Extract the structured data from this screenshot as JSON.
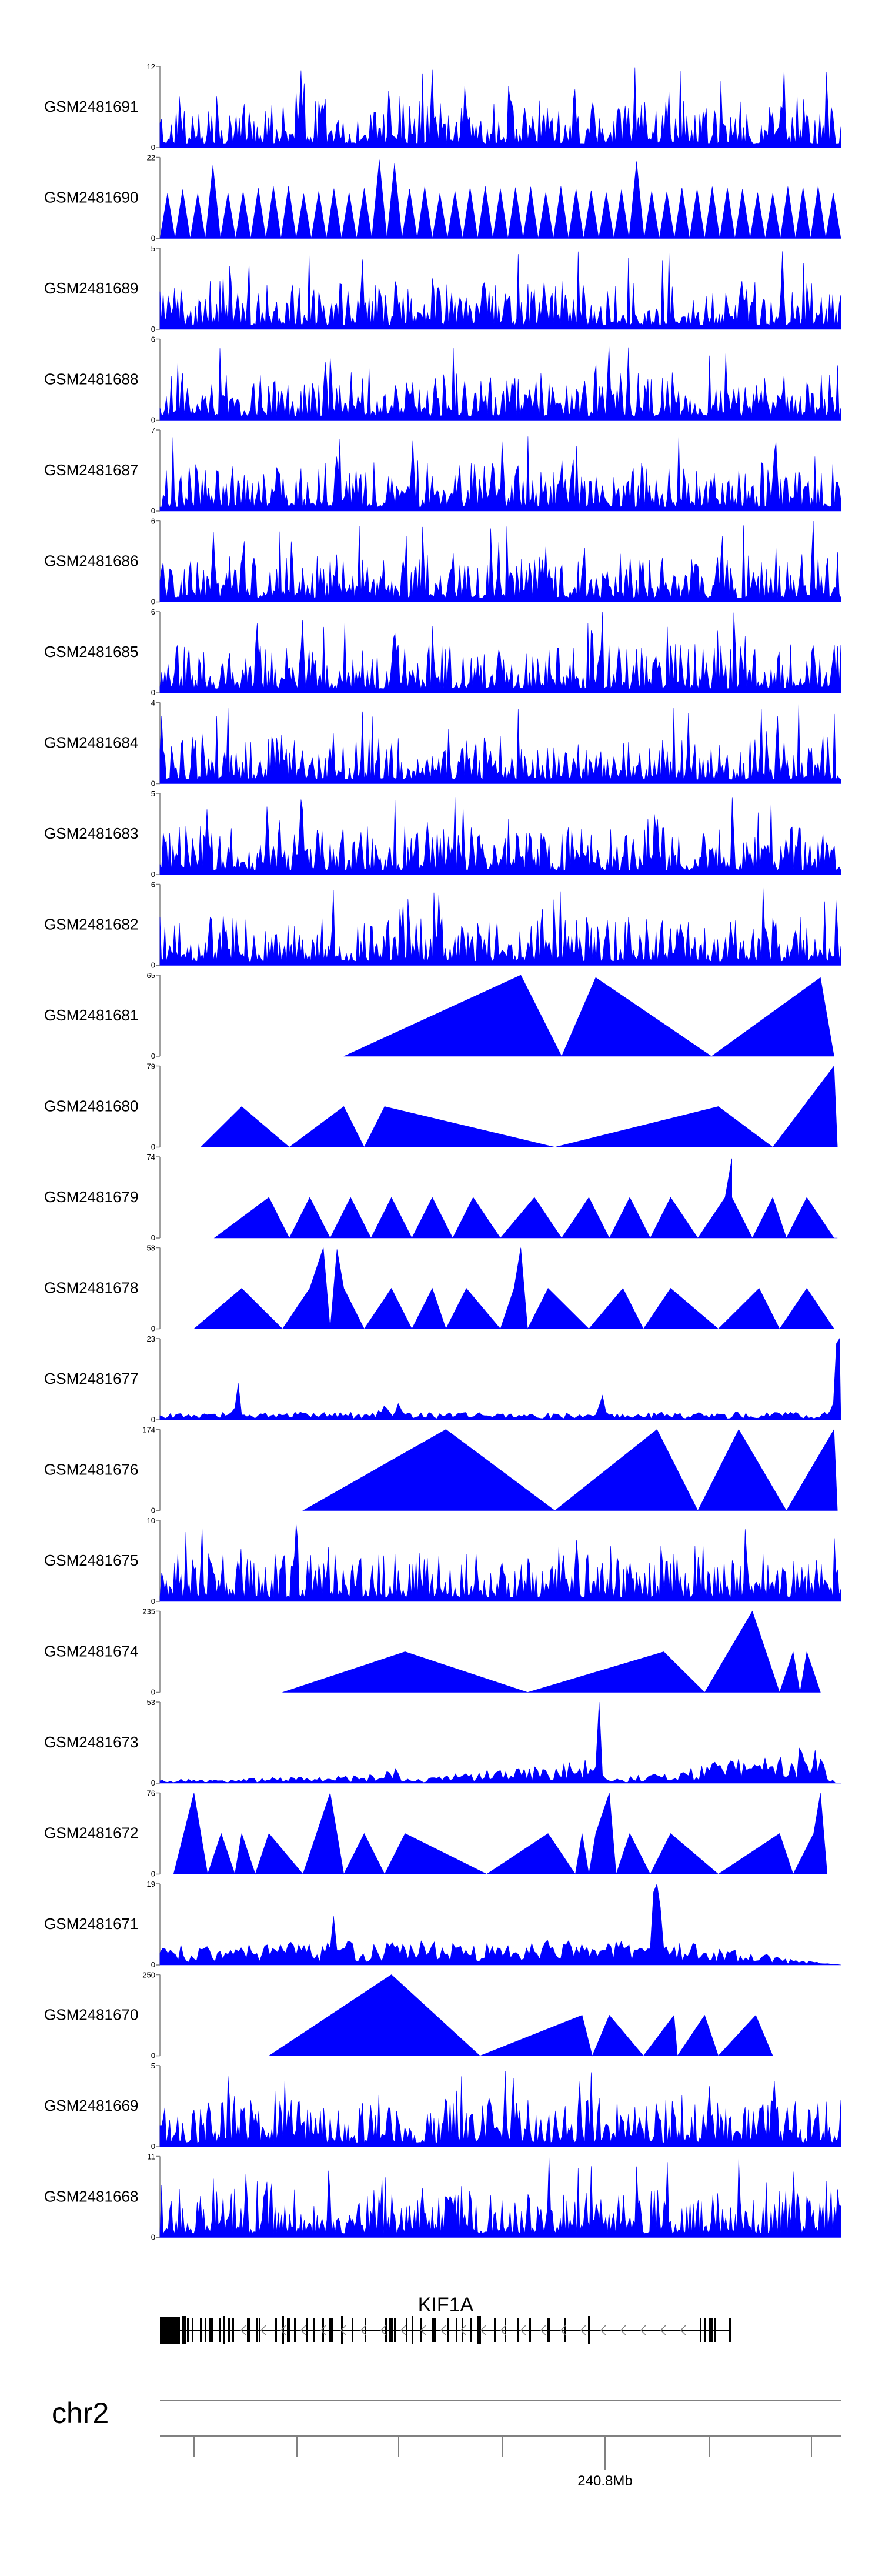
{
  "chart_data": {
    "type": "area",
    "title": "",
    "color": "#0000ff",
    "x_range": [
      0,
      1
    ],
    "series": [
      {
        "name": "GSM2481691",
        "ymax": 12,
        "ymin": 0,
        "style": "dense"
      },
      {
        "name": "GSM2481690",
        "ymax": 22,
        "ymin": 0,
        "style": "triangles-dense"
      },
      {
        "name": "GSM2481689",
        "ymax": 5,
        "ymin": 0,
        "style": "dense"
      },
      {
        "name": "GSM2481688",
        "ymax": 6,
        "ymin": 0,
        "style": "dense"
      },
      {
        "name": "GSM2481687",
        "ymax": 7,
        "ymin": 0,
        "style": "dense"
      },
      {
        "name": "GSM2481686",
        "ymax": 6,
        "ymin": 0,
        "style": "dense"
      },
      {
        "name": "GSM2481685",
        "ymax": 6,
        "ymin": 0,
        "style": "dense"
      },
      {
        "name": "GSM2481684",
        "ymax": 4,
        "ymin": 0,
        "style": "dense"
      },
      {
        "name": "GSM2481683",
        "ymax": 5,
        "ymin": 0,
        "style": "dense"
      },
      {
        "name": "GSM2481682",
        "ymax": 6,
        "ymin": 0,
        "style": "dense"
      },
      {
        "name": "GSM2481681",
        "ymax": 65,
        "ymin": 0,
        "style": "sparse",
        "points": [
          [
            0.27,
            0
          ],
          [
            0.53,
            1.0
          ],
          [
            0.59,
            0
          ],
          [
            0.64,
            0.97
          ],
          [
            0.81,
            0
          ],
          [
            0.97,
            0.97
          ],
          [
            0.99,
            0
          ]
        ]
      },
      {
        "name": "GSM2481680",
        "ymax": 79,
        "ymin": 0,
        "style": "sparse",
        "points": [
          [
            0.06,
            0
          ],
          [
            0.12,
            0.5
          ],
          [
            0.19,
            0
          ],
          [
            0.27,
            0.5
          ],
          [
            0.3,
            0
          ],
          [
            0.33,
            0.5
          ],
          [
            0.58,
            0
          ],
          [
            0.82,
            0.5
          ],
          [
            0.9,
            0
          ],
          [
            0.99,
            1.0
          ],
          [
            0.995,
            0
          ]
        ]
      },
      {
        "name": "GSM2481679",
        "ymax": 74,
        "ymin": 0,
        "style": "sparse",
        "points": [
          [
            0.08,
            0
          ],
          [
            0.16,
            0.5
          ],
          [
            0.19,
            0
          ],
          [
            0.22,
            0.5
          ],
          [
            0.25,
            0
          ],
          [
            0.28,
            0.5
          ],
          [
            0.31,
            0
          ],
          [
            0.34,
            0.5
          ],
          [
            0.37,
            0
          ],
          [
            0.4,
            0.5
          ],
          [
            0.43,
            0
          ],
          [
            0.46,
            0.5
          ],
          [
            0.5,
            0
          ],
          [
            0.55,
            0.5
          ],
          [
            0.59,
            0
          ],
          [
            0.63,
            0.5
          ],
          [
            0.66,
            0
          ],
          [
            0.69,
            0.5
          ],
          [
            0.72,
            0
          ],
          [
            0.75,
            0.5
          ],
          [
            0.79,
            0
          ],
          [
            0.83,
            0.5
          ],
          [
            0.84,
            0.98
          ],
          [
            0.84,
            0.5
          ],
          [
            0.87,
            0
          ],
          [
            0.9,
            0.5
          ],
          [
            0.92,
            0
          ],
          [
            0.95,
            0.5
          ],
          [
            0.99,
            0
          ],
          [
            0.995,
            0
          ]
        ]
      },
      {
        "name": "GSM2481678",
        "ymax": 58,
        "ymin": 0,
        "style": "sparse",
        "points": [
          [
            0.05,
            0
          ],
          [
            0.12,
            0.5
          ],
          [
            0.18,
            0
          ],
          [
            0.22,
            0.5
          ],
          [
            0.24,
            1.0
          ],
          [
            0.25,
            0
          ],
          [
            0.26,
            0.98
          ],
          [
            0.27,
            0.5
          ],
          [
            0.3,
            0
          ],
          [
            0.34,
            0.5
          ],
          [
            0.37,
            0
          ],
          [
            0.4,
            0.5
          ],
          [
            0.42,
            0
          ],
          [
            0.45,
            0.5
          ],
          [
            0.5,
            0
          ],
          [
            0.52,
            0.5
          ],
          [
            0.53,
            1.0
          ],
          [
            0.54,
            0
          ],
          [
            0.57,
            0.5
          ],
          [
            0.63,
            0
          ],
          [
            0.68,
            0.5
          ],
          [
            0.71,
            0
          ],
          [
            0.75,
            0.5
          ],
          [
            0.82,
            0
          ],
          [
            0.88,
            0.5
          ],
          [
            0.91,
            0
          ],
          [
            0.95,
            0.5
          ],
          [
            0.99,
            0
          ]
        ]
      },
      {
        "name": "GSM2481677",
        "ymax": 23,
        "ymin": 0,
        "style": "sparse-noise",
        "points": [
          [
            0.0,
            0.05
          ],
          [
            0.1,
            0.06
          ],
          [
            0.115,
            0.45
          ],
          [
            0.12,
            0.06
          ],
          [
            0.3,
            0.06
          ],
          [
            0.35,
            0.2
          ],
          [
            0.36,
            0.06
          ],
          [
            0.64,
            0.06
          ],
          [
            0.65,
            0.3
          ],
          [
            0.66,
            0.06
          ],
          [
            0.98,
            0.06
          ],
          [
            0.998,
            1.0
          ],
          [
            1.0,
            0
          ]
        ]
      },
      {
        "name": "GSM2481676",
        "ymax": 174,
        "ymin": 0,
        "style": "sparse",
        "points": [
          [
            0.21,
            0
          ],
          [
            0.42,
            1.0
          ],
          [
            0.58,
            0
          ],
          [
            0.73,
            1.0
          ],
          [
            0.79,
            0
          ],
          [
            0.85,
            1.0
          ],
          [
            0.92,
            0
          ],
          [
            0.99,
            1.0
          ],
          [
            0.995,
            0
          ]
        ]
      },
      {
        "name": "GSM2481675",
        "ymax": 10,
        "ymin": 0,
        "style": "dense"
      },
      {
        "name": "GSM2481674",
        "ymax": 235,
        "ymin": 0,
        "style": "sparse",
        "points": [
          [
            0.18,
            0
          ],
          [
            0.36,
            0.5
          ],
          [
            0.54,
            0
          ],
          [
            0.74,
            0.5
          ],
          [
            0.8,
            0
          ],
          [
            0.87,
            1.0
          ],
          [
            0.91,
            0
          ],
          [
            0.93,
            0.5
          ],
          [
            0.94,
            0
          ],
          [
            0.95,
            0.5
          ],
          [
            0.97,
            0
          ]
        ]
      },
      {
        "name": "GSM2481673",
        "ymax": 53,
        "ymin": 0,
        "style": "sparse-noise",
        "points": [
          [
            0.0,
            0.03
          ],
          [
            0.3,
            0.06
          ],
          [
            0.35,
            0.12
          ],
          [
            0.36,
            0.03
          ],
          [
            0.64,
            0.2
          ],
          [
            0.645,
            1.0
          ],
          [
            0.65,
            0.1
          ],
          [
            0.66,
            0.03
          ],
          [
            0.97,
            0.3
          ],
          [
            0.98,
            0.05
          ],
          [
            1.0,
            0
          ]
        ]
      },
      {
        "name": "GSM2481672",
        "ymax": 76,
        "ymin": 0,
        "style": "sparse",
        "points": [
          [
            0.02,
            0
          ],
          [
            0.05,
            1.0
          ],
          [
            0.07,
            0
          ],
          [
            0.09,
            0.5
          ],
          [
            0.11,
            0
          ],
          [
            0.12,
            0.5
          ],
          [
            0.14,
            0
          ],
          [
            0.16,
            0.5
          ],
          [
            0.21,
            0
          ],
          [
            0.25,
            1.0
          ],
          [
            0.27,
            0
          ],
          [
            0.3,
            0.5
          ],
          [
            0.33,
            0
          ],
          [
            0.36,
            0.5
          ],
          [
            0.48,
            0
          ],
          [
            0.57,
            0.5
          ],
          [
            0.61,
            0
          ],
          [
            0.62,
            0.5
          ],
          [
            0.63,
            0
          ],
          [
            0.64,
            0.5
          ],
          [
            0.66,
            1.0
          ],
          [
            0.67,
            0
          ],
          [
            0.69,
            0.5
          ],
          [
            0.72,
            0
          ],
          [
            0.75,
            0.5
          ],
          [
            0.82,
            0
          ],
          [
            0.91,
            0.5
          ],
          [
            0.93,
            0
          ],
          [
            0.96,
            0.5
          ],
          [
            0.97,
            1.0
          ],
          [
            0.98,
            0
          ]
        ]
      },
      {
        "name": "GSM2481671",
        "ymax": 19,
        "ymin": 0,
        "style": "sparse-noise",
        "points": [
          [
            0.0,
            0.15
          ],
          [
            0.25,
            0.2
          ],
          [
            0.255,
            0.6
          ],
          [
            0.26,
            0.18
          ],
          [
            0.72,
            0.2
          ],
          [
            0.73,
            1.0
          ],
          [
            0.74,
            0.2
          ],
          [
            1.0,
            0
          ]
        ]
      },
      {
        "name": "GSM2481670",
        "ymax": 250,
        "ymin": 0,
        "style": "sparse",
        "points": [
          [
            0.16,
            0
          ],
          [
            0.34,
            1.0
          ],
          [
            0.47,
            0
          ],
          [
            0.62,
            0.5
          ],
          [
            0.635,
            0
          ],
          [
            0.66,
            0.5
          ],
          [
            0.71,
            0
          ],
          [
            0.755,
            0.5
          ],
          [
            0.76,
            0
          ],
          [
            0.8,
            0.5
          ],
          [
            0.82,
            0
          ],
          [
            0.875,
            0.5
          ],
          [
            0.9,
            0
          ]
        ]
      },
      {
        "name": "GSM2481669",
        "ymax": 5,
        "ymin": 0,
        "style": "dense"
      },
      {
        "name": "GSM2481668",
        "ymax": 11,
        "ymin": 0,
        "style": "dense"
      }
    ],
    "gene_track": {
      "label": "KIF1A",
      "strand": "-"
    },
    "chromosome": {
      "label": "chr2",
      "tick_label": "240.8Mb"
    }
  }
}
